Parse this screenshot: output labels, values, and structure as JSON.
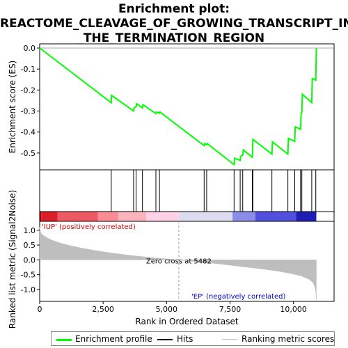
{
  "title_lines": [
    "Enrichment plot:",
    "REACTOME_CLEAVAGE_OF_GROWING_TRANSCRIPT_IN",
    "_THE_TERMINATION_REGION_"
  ],
  "legend": {
    "items": [
      {
        "label": "Enrichment profile",
        "color": "#00ff00"
      },
      {
        "label": "Hits",
        "color": "#000000"
      },
      {
        "label": "Ranking metric scores",
        "color": "#bebebe"
      }
    ]
  },
  "chart_data": {
    "type": "line",
    "title": "Enrichment plot: REACTOME_CLEAVAGE_OF_GROWING_TRANSCRIPT_IN_THE_TERMINATION_REGION_",
    "xlabel": "Rank in Ordered Dataset",
    "x_ticks": [
      0,
      2500,
      5000,
      7500,
      10000
    ],
    "x_tick_labels": [
      "0",
      "2,500",
      "5,000",
      "7,500",
      "10,000"
    ],
    "xlim": [
      0,
      11600
    ],
    "enrichment": {
      "ylabel": "Enrichment score (ES)",
      "ylim": [
        -0.58,
        0.02
      ],
      "y_ticks": [
        0.0,
        -0.1,
        -0.2,
        -0.3,
        -0.4,
        -0.5
      ],
      "y_tick_labels": [
        "0.0",
        "-0.1",
        "-0.2",
        "-0.3",
        "-0.4",
        "-0.5"
      ],
      "color": "#00ff00",
      "x": [
        0,
        2820,
        2830,
        3700,
        3720,
        3800,
        3820,
        4050,
        4070,
        4580,
        4600,
        4720,
        4740,
        6480,
        6500,
        6580,
        6600,
        7660,
        7680,
        7900,
        7920,
        8000,
        8020,
        8380,
        8400,
        9150,
        9170,
        9780,
        9800,
        10050,
        10070,
        10280,
        10300,
        10330,
        10350,
        10720,
        10740,
        10880,
        10900
      ],
      "y": [
        0.0,
        -0.26,
        -0.225,
        -0.3,
        -0.285,
        -0.28,
        -0.265,
        -0.285,
        -0.27,
        -0.312,
        -0.305,
        -0.31,
        -0.305,
        -0.465,
        -0.455,
        -0.46,
        -0.455,
        -0.555,
        -0.525,
        -0.535,
        -0.515,
        -0.51,
        -0.485,
        -0.52,
        -0.435,
        -0.505,
        -0.447,
        -0.505,
        -0.43,
        -0.445,
        -0.375,
        -0.387,
        -0.31,
        -0.307,
        -0.22,
        -0.26,
        -0.145,
        -0.153,
        0.0
      ]
    },
    "hits": [
      2820,
      3700,
      3800,
      4050,
      4580,
      4720,
      6480,
      6580,
      7660,
      7900,
      8000,
      8380,
      8400,
      9150,
      9780,
      10050,
      10280,
      10330,
      10720,
      10880
    ],
    "ranking_metric": {
      "ylabel": "Ranked list metric (Signal2Noise)",
      "ylim": [
        -1.4,
        1.3
      ],
      "y_ticks": [
        1.0,
        0.5,
        0.0,
        -0.5,
        -1.0
      ],
      "y_tick_labels": [
        "1.0",
        "0.5",
        "0.0",
        "-0.5",
        "-1.0"
      ],
      "color": "#bebebe",
      "x": [
        0,
        50,
        150,
        300,
        500,
        800,
        1200,
        1700,
        2300,
        3000,
        3800,
        4600,
        5482,
        6300,
        7000,
        7600,
        8200,
        8800,
        9400,
        9900,
        10300,
        10600,
        10750,
        10830,
        10880,
        10900
      ],
      "y": [
        1.1,
        0.9,
        0.82,
        0.74,
        0.66,
        0.57,
        0.48,
        0.39,
        0.3,
        0.21,
        0.13,
        0.06,
        0.0,
        -0.07,
        -0.13,
        -0.19,
        -0.25,
        -0.31,
        -0.38,
        -0.46,
        -0.54,
        -0.65,
        -0.75,
        -0.88,
        -1.05,
        -1.35
      ]
    },
    "zero_cross_rank": 5482,
    "annotations": {
      "positive": "'IUP' (positively correlated)",
      "negative": "'EP' (negatively correlated)",
      "zero_cross": "Zero cross at 5482"
    },
    "grid": false,
    "legend_position": "bottom"
  }
}
